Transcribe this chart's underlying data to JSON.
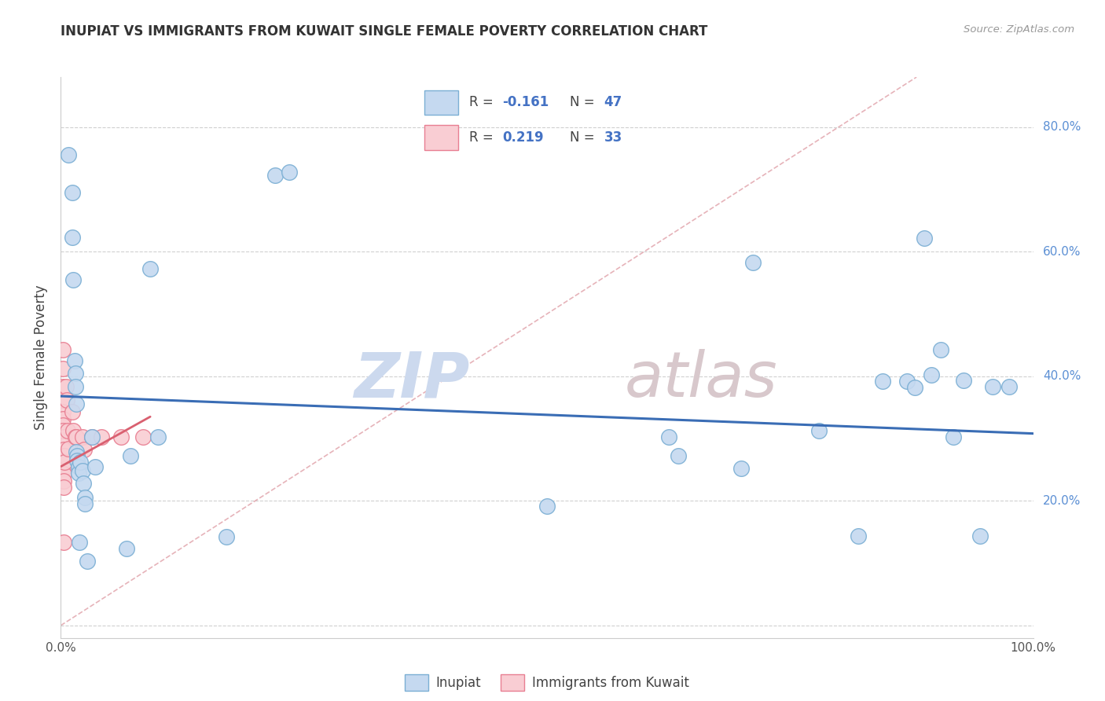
{
  "title": "INUPIAT VS IMMIGRANTS FROM KUWAIT SINGLE FEMALE POVERTY CORRELATION CHART",
  "source": "Source: ZipAtlas.com",
  "ylabel": "Single Female Poverty",
  "y_ticks": [
    0.0,
    0.2,
    0.4,
    0.6,
    0.8
  ],
  "y_tick_labels": [
    "",
    "20.0%",
    "40.0%",
    "60.0%",
    "80.0%"
  ],
  "xlim": [
    0.0,
    1.0
  ],
  "ylim": [
    -0.02,
    0.88
  ],
  "inupiat_color": "#c5d9f0",
  "kuwait_color": "#f9cdd3",
  "inupiat_edge": "#7bafd4",
  "kuwait_edge": "#e87f92",
  "blue_line_color": "#3a6db5",
  "pink_line_color": "#d96070",
  "diag_line_color": "#e0a0a8",
  "watermark_color": "#dde8f4",
  "watermark_color2": "#d4c8d0",
  "inupiat_x": [
    0.008,
    0.012,
    0.012,
    0.013,
    0.014,
    0.015,
    0.015,
    0.016,
    0.016,
    0.017,
    0.017,
    0.018,
    0.018,
    0.019,
    0.02,
    0.022,
    0.023,
    0.025,
    0.025,
    0.027,
    0.032,
    0.035,
    0.068,
    0.072,
    0.092,
    0.1,
    0.17,
    0.22,
    0.235,
    0.5,
    0.625,
    0.635,
    0.7,
    0.712,
    0.78,
    0.82,
    0.845,
    0.87,
    0.878,
    0.888,
    0.895,
    0.905,
    0.918,
    0.928,
    0.945,
    0.958,
    0.975
  ],
  "inupiat_y": [
    0.755,
    0.695,
    0.623,
    0.555,
    0.425,
    0.405,
    0.383,
    0.355,
    0.278,
    0.272,
    0.265,
    0.255,
    0.245,
    0.133,
    0.262,
    0.248,
    0.228,
    0.205,
    0.195,
    0.103,
    0.302,
    0.255,
    0.123,
    0.272,
    0.573,
    0.303,
    0.142,
    0.723,
    0.728,
    0.192,
    0.302,
    0.272,
    0.252,
    0.582,
    0.312,
    0.143,
    0.392,
    0.392,
    0.382,
    0.622,
    0.402,
    0.442,
    0.302,
    0.393,
    0.143,
    0.383,
    0.383
  ],
  "kuwait_x": [
    0.002,
    0.002,
    0.002,
    0.002,
    0.002,
    0.002,
    0.002,
    0.002,
    0.003,
    0.003,
    0.003,
    0.003,
    0.003,
    0.003,
    0.003,
    0.003,
    0.003,
    0.004,
    0.004,
    0.005,
    0.006,
    0.007,
    0.008,
    0.012,
    0.013,
    0.015,
    0.016,
    0.022,
    0.024,
    0.032,
    0.042,
    0.062,
    0.085
  ],
  "kuwait_y": [
    0.443,
    0.412,
    0.383,
    0.362,
    0.343,
    0.332,
    0.322,
    0.312,
    0.302,
    0.282,
    0.272,
    0.263,
    0.252,
    0.243,
    0.232,
    0.222,
    0.133,
    0.272,
    0.262,
    0.383,
    0.362,
    0.313,
    0.283,
    0.343,
    0.312,
    0.302,
    0.302,
    0.302,
    0.282,
    0.302,
    0.302,
    0.302,
    0.302
  ],
  "blue_line_x": [
    0.0,
    1.0
  ],
  "blue_line_y": [
    0.368,
    0.308
  ],
  "pink_line_x": [
    0.0,
    0.092
  ],
  "pink_line_y": [
    0.255,
    0.335
  ],
  "diag_line_x": [
    0.0,
    0.88
  ],
  "diag_line_y": [
    0.0,
    0.88
  ],
  "legend_r1": "R = -0.161",
  "legend_n1": "N = 47",
  "legend_r2": "R =  0.219",
  "legend_n2": "N = 33",
  "legend_labels": [
    "Inupiat",
    "Immigrants from Kuwait"
  ]
}
